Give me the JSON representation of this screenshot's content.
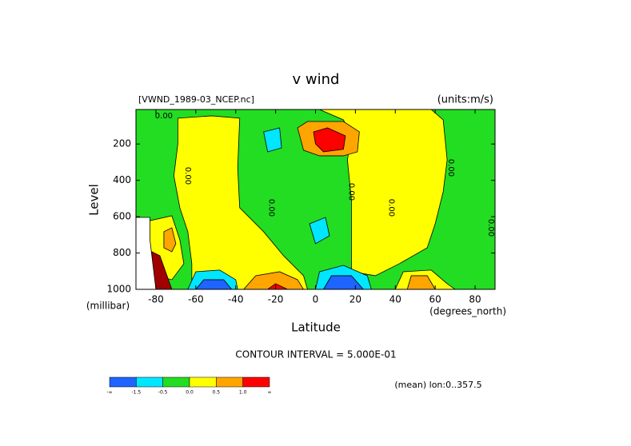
{
  "chart_data": {
    "type": "contour",
    "title": "v wind",
    "subtitle_left": "[VWND_1989-03_NCEP.nc]",
    "subtitle_right": "(units:m/s)",
    "xlabel": "Latitude",
    "xunit": "(degrees_north)",
    "ylabel": "Level",
    "yunit": "(millibar)",
    "footnote": "CONTOUR INTERVAL = 5.000E-01",
    "note": "(mean) lon:0..357.5",
    "xlim": [
      -90,
      90
    ],
    "ylim": [
      1000,
      10
    ],
    "xticks": [
      -80,
      -60,
      -40,
      -20,
      0,
      20,
      40,
      60,
      80
    ],
    "yticks": [
      200,
      400,
      600,
      800,
      1000
    ],
    "background": "#22dd22",
    "colorbar": {
      "colors": [
        "#1e64ff",
        "#00e6ff",
        "#22dd22",
        "#ffff00",
        "#ffa500",
        "#ff0000"
      ],
      "labels": [
        "-∞",
        "-1.5",
        "-0.5",
        "0.0",
        "0.5",
        "1.0",
        "∞"
      ]
    },
    "regions": [
      {
        "color": "#ffff00",
        "points": [
          [
            -69,
            58
          ],
          [
            -52,
            45
          ],
          [
            -38,
            58
          ],
          [
            -39,
            331
          ],
          [
            -38,
            551
          ],
          [
            -26,
            683
          ],
          [
            -16,
            815
          ],
          [
            -6,
            925
          ],
          [
            -4,
            1000
          ],
          [
            -62,
            1000
          ],
          [
            -62,
            859
          ],
          [
            -64,
            683
          ],
          [
            -68,
            551
          ],
          [
            -71,
            375
          ],
          [
            -69,
            199
          ]
        ]
      },
      {
        "color": "#ffff00",
        "points": [
          [
            2,
            10
          ],
          [
            58,
            10
          ],
          [
            64,
            67
          ],
          [
            66,
            287
          ],
          [
            64,
            463
          ],
          [
            60,
            639
          ],
          [
            56,
            771
          ],
          [
            42,
            859
          ],
          [
            30,
            925
          ],
          [
            18,
            903
          ],
          [
            18,
            727
          ],
          [
            18,
            507
          ],
          [
            16,
            287
          ],
          [
            18,
            155
          ],
          [
            14,
            67
          ]
        ]
      },
      {
        "color": "#ffff00",
        "points": [
          [
            -90,
            639
          ],
          [
            -72,
            595
          ],
          [
            -68,
            727
          ],
          [
            -66,
            859
          ],
          [
            -72,
            947
          ],
          [
            -80,
            925
          ],
          [
            -84,
            771
          ]
        ]
      },
      {
        "color": "#ffff00",
        "points": [
          [
            40,
            1000
          ],
          [
            44,
            903
          ],
          [
            58,
            894
          ],
          [
            66,
            969
          ],
          [
            70,
            1000
          ]
        ]
      },
      {
        "color": "#00e6ff",
        "points": [
          [
            -26,
            133
          ],
          [
            -18,
            111
          ],
          [
            -17,
            221
          ],
          [
            -24,
            243
          ]
        ]
      },
      {
        "color": "#00e6ff",
        "points": [
          [
            -3,
            639
          ],
          [
            5,
            604
          ],
          [
            7,
            705
          ],
          [
            0,
            749
          ]
        ]
      },
      {
        "color": "#00e6ff",
        "points": [
          [
            -64,
            1000
          ],
          [
            -60,
            903
          ],
          [
            -48,
            894
          ],
          [
            -40,
            947
          ],
          [
            -39,
            1000
          ]
        ]
      },
      {
        "color": "#00e6ff",
        "points": [
          [
            0,
            1000
          ],
          [
            2,
            903
          ],
          [
            14,
            868
          ],
          [
            26,
            925
          ],
          [
            28,
            1000
          ]
        ]
      },
      {
        "color": "#1e64ff",
        "points": [
          [
            -60,
            1000
          ],
          [
            -56,
            947
          ],
          [
            -46,
            947
          ],
          [
            -42,
            1000
          ]
        ]
      },
      {
        "color": "#1e64ff",
        "points": [
          [
            4,
            1000
          ],
          [
            8,
            925
          ],
          [
            18,
            925
          ],
          [
            24,
            1000
          ]
        ]
      },
      {
        "color": "#ffa500",
        "points": [
          [
            -9,
            111
          ],
          [
            -4,
            76
          ],
          [
            14,
            76
          ],
          [
            22,
            133
          ],
          [
            21,
            243
          ],
          [
            14,
            265
          ],
          [
            2,
            265
          ],
          [
            -6,
            234
          ]
        ]
      },
      {
        "color": "#ffa500",
        "points": [
          [
            -36,
            1000
          ],
          [
            -30,
            925
          ],
          [
            -18,
            903
          ],
          [
            -9,
            947
          ],
          [
            -6,
            1000
          ]
        ]
      },
      {
        "color": "#ffa500",
        "points": [
          [
            46,
            1000
          ],
          [
            48,
            925
          ],
          [
            56,
            925
          ],
          [
            60,
            1000
          ]
        ]
      },
      {
        "color": "#ffa500",
        "points": [
          [
            -76,
            683
          ],
          [
            -72,
            661
          ],
          [
            -70,
            749
          ],
          [
            -72,
            793
          ],
          [
            -76,
            771
          ]
        ]
      },
      {
        "color": "#ff0000",
        "points": [
          [
            -1,
            133
          ],
          [
            6,
            111
          ],
          [
            15,
            155
          ],
          [
            14,
            229
          ],
          [
            4,
            243
          ],
          [
            0,
            199
          ]
        ]
      },
      {
        "color": "#ff0000",
        "points": [
          [
            -24,
            1000
          ],
          [
            -20,
            969
          ],
          [
            -14,
            1000
          ]
        ]
      },
      {
        "color": "#a00000",
        "points": [
          [
            -82,
            793
          ],
          [
            -78,
            815
          ],
          [
            -72,
            1000
          ],
          [
            -82,
            1000
          ]
        ]
      },
      {
        "color": "#ffffff",
        "points": [
          [
            -90,
            604
          ],
          [
            -83,
            604
          ],
          [
            -83,
            727
          ],
          [
            -80,
            1000
          ],
          [
            -90,
            1000
          ]
        ]
      }
    ],
    "contour_labels": [
      {
        "x": -76,
        "y": 45,
        "label": "0.00"
      },
      {
        "x": -64,
        "y": 375,
        "label": "0.00"
      },
      {
        "x": -22,
        "y": 551,
        "label": "0.00"
      },
      {
        "x": 18,
        "y": 463,
        "label": "0.00"
      },
      {
        "x": 38,
        "y": 551,
        "label": "0.00"
      },
      {
        "x": 68,
        "y": 331,
        "label": "0.00"
      },
      {
        "x": 88,
        "y": 661,
        "label": "0.00"
      }
    ]
  }
}
